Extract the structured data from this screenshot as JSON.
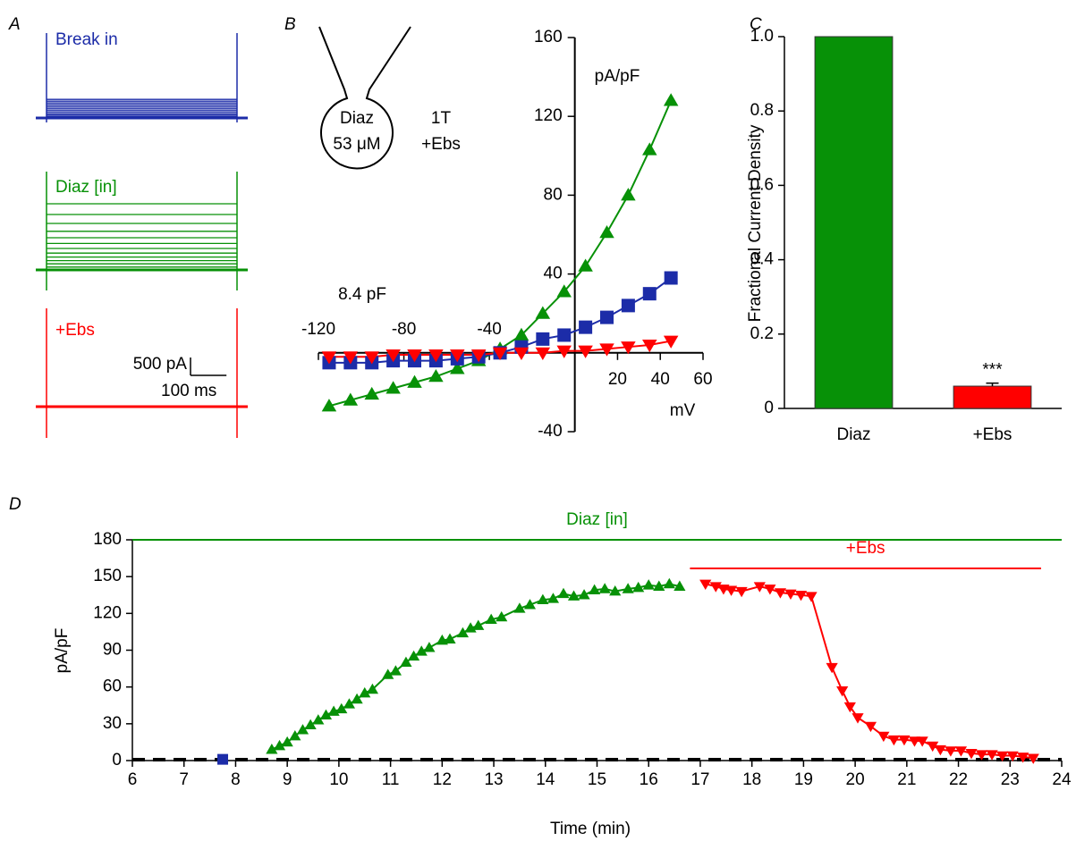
{
  "chart_data": [
    {
      "type": "traces",
      "panel": "A",
      "pulse_ms": 530,
      "scale_y": {
        "value": 500,
        "label": "500 pA"
      },
      "scale_x": {
        "value": 100,
        "label": "100 ms"
      },
      "series": [
        {
          "name": "Break in",
          "color": "#1c2ca8",
          "values": [
            0,
            40,
            80,
            120,
            170,
            220,
            270,
            320,
            370,
            420,
            470,
            520
          ]
        },
        {
          "name": "Diaz [in]",
          "color": "#079107",
          "values": [
            0,
            80,
            170,
            260,
            360,
            470,
            600,
            740,
            900,
            1080,
            1300,
            1550,
            1850
          ]
        },
        {
          "name": "+Ebs",
          "color": "#ff0000",
          "values": [
            0,
            5,
            10,
            15,
            20
          ]
        }
      ]
    },
    {
      "type": "line",
      "panel": "B",
      "y_label": "pA/pF",
      "x_label": "mV",
      "annotation": "8.4 pF",
      "inset": [
        "Diaz",
        "53 μM",
        "1T",
        "+Ebs"
      ],
      "xlim": [
        -120,
        60
      ],
      "xticks": [
        -120,
        -80,
        -40,
        20,
        40,
        60
      ],
      "ylim": [
        -40,
        160
      ],
      "yticks": [
        -40,
        40,
        80,
        120,
        160
      ],
      "x": [
        -115,
        -105,
        -95,
        -85,
        -75,
        -65,
        -55,
        -45,
        -35,
        -25,
        -15,
        -5,
        5,
        15,
        25,
        35,
        45
      ],
      "series": [
        {
          "color": "#079107",
          "marker": "triangle-up",
          "values": [
            -27,
            -24,
            -21,
            -18,
            -15,
            -12,
            -8,
            -4,
            2,
            9,
            20,
            31,
            44,
            61,
            80,
            103,
            128
          ]
        },
        {
          "color": "#1c2ca8",
          "marker": "square",
          "values": [
            -5,
            -5,
            -5,
            -4,
            -4,
            -4,
            -3,
            -2,
            0,
            3,
            7,
            9,
            13,
            18,
            24,
            30,
            38
          ]
        },
        {
          "color": "#ff0000",
          "marker": "triangle-down",
          "values": [
            -2,
            -2,
            -2,
            -1,
            -1,
            -1,
            -1,
            -1,
            0,
            0,
            0,
            1,
            1,
            2,
            3,
            4,
            6
          ]
        }
      ]
    },
    {
      "type": "bar",
      "panel": "C",
      "y_label": "Fractional Current Density",
      "categories": [
        "Diaz",
        "+Ebs"
      ],
      "values": [
        1,
        0.06
      ],
      "errors": [
        0,
        0.008
      ],
      "colors": [
        "#079107",
        "#ff0000"
      ],
      "annotation": "***",
      "ylim": [
        0,
        1
      ],
      "yticks": [
        0,
        0.2,
        0.4,
        0.6,
        0.8,
        {
          "value": 1,
          "label": "1.0"
        }
      ]
    },
    {
      "type": "timecourse",
      "panel": "D",
      "x_label": "Time (min)",
      "y_label": "pA/pF",
      "xlim": [
        6,
        24
      ],
      "xticks": [
        6,
        7,
        8,
        9,
        10,
        11,
        12,
        13,
        14,
        15,
        16,
        17,
        18,
        19,
        20,
        21,
        22,
        23,
        24
      ],
      "ylim": [
        0,
        180
      ],
      "yticks": [
        0,
        30,
        60,
        90,
        120,
        150,
        180
      ],
      "bars": [
        {
          "label": "Diaz [in]",
          "color": "#079107",
          "start": 6,
          "end": 24
        },
        {
          "label": "+Ebs",
          "color": "#ff0000",
          "start": 16.8,
          "end": 23.6
        }
      ],
      "series": [
        {
          "color": "#1c2ca8",
          "marker": "square",
          "x": [
            7.75
          ],
          "values": [
            1
          ]
        },
        {
          "color": "#079107",
          "marker": "triangle-up",
          "x": [
            8.7,
            8.85,
            9.0,
            9.15,
            9.3,
            9.45,
            9.6,
            9.75,
            9.9,
            10.05,
            10.2,
            10.35,
            10.5,
            10.65,
            10.95,
            11.1,
            11.3,
            11.45,
            11.6,
            11.75,
            12.0,
            12.15,
            12.4,
            12.55,
            12.7,
            12.95,
            13.15,
            13.5,
            13.7,
            13.95,
            14.15,
            14.35,
            14.55,
            14.75,
            14.95,
            15.15,
            15.35,
            15.6,
            15.8,
            16.0,
            16.2,
            16.4,
            16.6
          ],
          "values": [
            9,
            12,
            15,
            20,
            25,
            29,
            33,
            37,
            40,
            42,
            46,
            50,
            55,
            58,
            70,
            73,
            80,
            85,
            89,
            92,
            98,
            99,
            104,
            108,
            110,
            115,
            117,
            124,
            127,
            131,
            132,
            136,
            134,
            135,
            139,
            140,
            138,
            140,
            141,
            143,
            142,
            144,
            142
          ]
        },
        {
          "color": "#ff0000",
          "marker": "triangle-down",
          "x": [
            17.1,
            17.3,
            17.45,
            17.6,
            17.8,
            18.15,
            18.35,
            18.55,
            18.75,
            18.95,
            19.15,
            19.55,
            19.75,
            19.9,
            20.05,
            20.3,
            20.55,
            20.75,
            20.95,
            21.15,
            21.3,
            21.5,
            21.65,
            21.85,
            22.05,
            22.25,
            22.45,
            22.65,
            22.85,
            23.05,
            23.25,
            23.45
          ],
          "values": [
            144,
            142,
            140,
            139,
            138,
            142,
            140,
            137,
            136,
            135,
            134,
            76,
            57,
            44,
            35,
            28,
            20,
            17,
            17,
            16,
            16,
            12,
            9,
            8,
            8,
            6,
            5,
            5,
            4,
            4,
            3,
            2
          ]
        }
      ]
    }
  ]
}
